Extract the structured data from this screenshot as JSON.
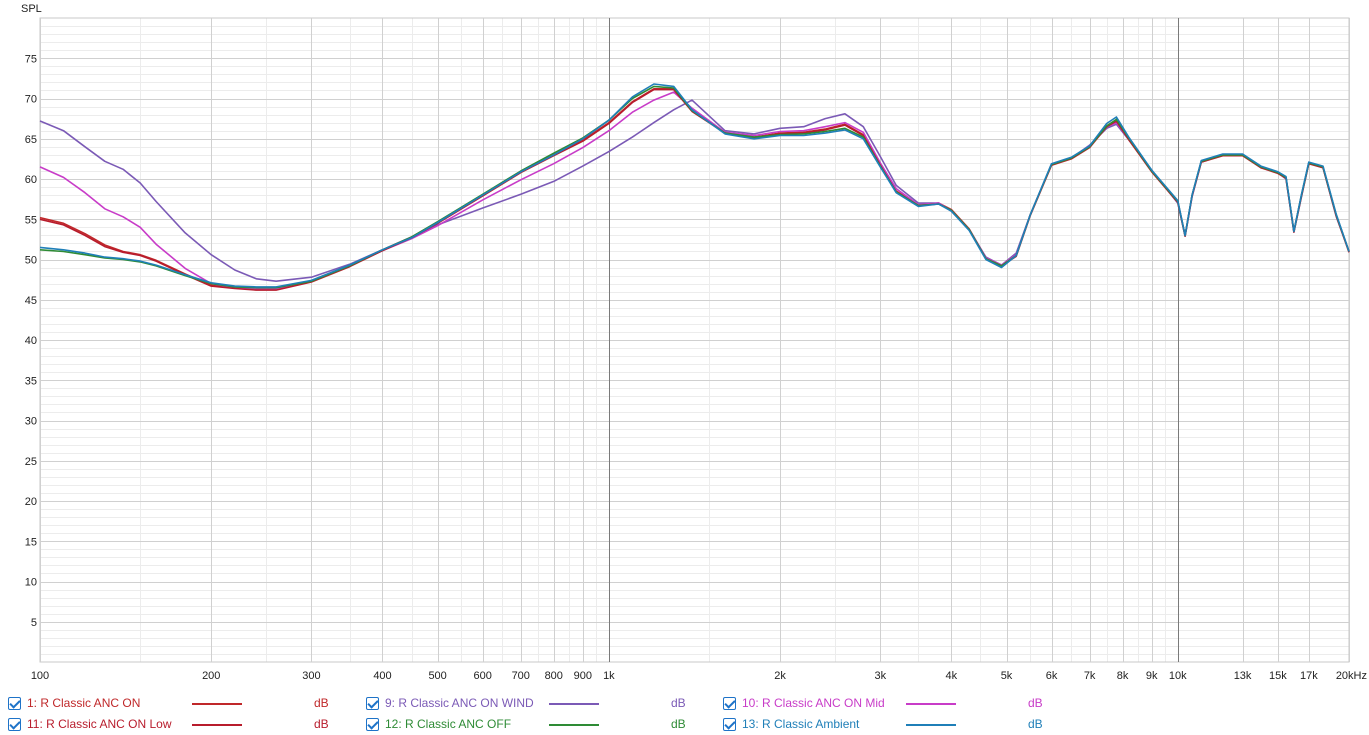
{
  "chart_data": {
    "type": "line",
    "title": "",
    "ylabel": "SPL",
    "xlabel": "",
    "x_scale": "log",
    "xlim": [
      100,
      20000
    ],
    "ylim": [
      0,
      80
    ],
    "x_ticks": [
      {
        "v": 100,
        "label": "100"
      },
      {
        "v": 200,
        "label": "200"
      },
      {
        "v": 300,
        "label": "300"
      },
      {
        "v": 400,
        "label": "400"
      },
      {
        "v": 500,
        "label": "500"
      },
      {
        "v": 600,
        "label": "600"
      },
      {
        "v": 700,
        "label": "700"
      },
      {
        "v": 800,
        "label": "800"
      },
      {
        "v": 900,
        "label": "900"
      },
      {
        "v": 1000,
        "label": "1k"
      },
      {
        "v": 2000,
        "label": "2k"
      },
      {
        "v": 3000,
        "label": "3k"
      },
      {
        "v": 4000,
        "label": "4k"
      },
      {
        "v": 5000,
        "label": "5k"
      },
      {
        "v": 6000,
        "label": "6k"
      },
      {
        "v": 7000,
        "label": "7k"
      },
      {
        "v": 8000,
        "label": "8k"
      },
      {
        "v": 9000,
        "label": "9k"
      },
      {
        "v": 10000,
        "label": "10k"
      },
      {
        "v": 13000,
        "label": "13k"
      },
      {
        "v": 15000,
        "label": "15k"
      },
      {
        "v": 17000,
        "label": "17k"
      },
      {
        "v": 20000,
        "label": "20kHz"
      }
    ],
    "y_ticks": [
      5,
      10,
      15,
      20,
      25,
      30,
      35,
      40,
      45,
      50,
      55,
      60,
      65,
      70,
      75
    ],
    "grid": true,
    "legend_position": "bottom",
    "series": [
      {
        "name": "1: R Classic ANC ON",
        "unit": "dB",
        "color": "#c0282a",
        "x": [
          100,
          110,
          120,
          130,
          140,
          150,
          160,
          180,
          200,
          220,
          240,
          260,
          300,
          350,
          400,
          450,
          500,
          600,
          700,
          800,
          900,
          1000,
          1100,
          1200,
          1300,
          1400,
          1600,
          1800,
          2000,
          2200,
          2400,
          2600,
          2800,
          3000,
          3200,
          3500,
          3800,
          4000,
          4300,
          4600,
          4900,
          5200,
          5500,
          6000,
          6500,
          7000,
          7500,
          7800,
          8200,
          9000,
          10000,
          10300,
          10600,
          11000,
          12000,
          13000,
          14000,
          15000,
          15500,
          16000,
          16500,
          17000,
          18000,
          19000,
          20000
        ],
        "y": [
          55.2,
          54.5,
          53.2,
          51.8,
          51.0,
          50.6,
          49.9,
          48.2,
          46.8,
          46.5,
          46.3,
          46.3,
          47.3,
          49.2,
          51.2,
          52.8,
          54.6,
          58.0,
          60.9,
          63.0,
          64.8,
          67.0,
          69.6,
          71.2,
          71.2,
          68.5,
          65.8,
          65.2,
          65.7,
          65.8,
          66.2,
          66.8,
          65.5,
          61.8,
          58.5,
          56.8,
          57.0,
          56.2,
          53.8,
          50.2,
          49.3,
          50.5,
          55.5,
          61.8,
          62.6,
          64.0,
          66.6,
          67.3,
          65.0,
          61.0,
          57.2,
          53.0,
          58.0,
          62.2,
          63.0,
          63.0,
          61.5,
          60.8,
          60.2,
          53.5,
          58.0,
          62.0,
          61.5,
          55.5,
          51.0
        ]
      },
      {
        "name": "9: R Classic ANC ON WIND",
        "unit": "dB",
        "color": "#7b5ab6",
        "x": [
          100,
          110,
          120,
          130,
          140,
          150,
          160,
          180,
          200,
          220,
          240,
          260,
          300,
          350,
          400,
          450,
          500,
          600,
          700,
          800,
          900,
          1000,
          1100,
          1200,
          1300,
          1400,
          1600,
          1800,
          2000,
          2200,
          2400,
          2600,
          2800,
          3000,
          3200,
          3500,
          3800,
          4000,
          4300,
          4600,
          4900,
          5200,
          5500,
          6000,
          6500,
          7000,
          7500,
          7800,
          8200,
          9000,
          10000,
          10300,
          10600,
          11000,
          12000,
          13000,
          14000,
          15000,
          15500,
          16000,
          16500,
          17000,
          18000,
          19000,
          20000
        ],
        "y": [
          67.2,
          66.0,
          64.0,
          62.2,
          61.2,
          59.5,
          57.2,
          53.3,
          50.6,
          48.7,
          47.6,
          47.3,
          47.8,
          49.4,
          51.2,
          52.8,
          54.3,
          56.4,
          58.1,
          59.7,
          61.6,
          63.4,
          65.2,
          67.0,
          68.6,
          69.8,
          66.0,
          65.6,
          66.3,
          66.5,
          67.5,
          68.1,
          66.5,
          62.8,
          59.2,
          57.0,
          57.0,
          56.0,
          53.7,
          50.3,
          49.3,
          50.8,
          55.5,
          61.8,
          62.6,
          64.2,
          66.3,
          66.8,
          64.9,
          61.1,
          57.0,
          52.9,
          57.8,
          62.1,
          63.0,
          63.0,
          61.4,
          60.8,
          60.0,
          53.4,
          57.8,
          62.0,
          61.4,
          55.3,
          51.0
        ]
      },
      {
        "name": "10: R Classic ANC ON Mid",
        "unit": "dB",
        "color": "#c83cc8",
        "x": [
          100,
          110,
          120,
          130,
          140,
          150,
          160,
          180,
          200,
          220,
          240,
          260,
          300,
          350,
          400,
          450,
          500,
          600,
          700,
          800,
          900,
          1000,
          1100,
          1200,
          1300,
          1400,
          1600,
          1800,
          2000,
          2200,
          2400,
          2600,
          2800,
          3000,
          3200,
          3500,
          3800,
          4000,
          4300,
          4600,
          4900,
          5200,
          5500,
          6000,
          6500,
          7000,
          7500,
          7800,
          8200,
          9000,
          10000,
          10300,
          10600,
          11000,
          12000,
          13000,
          14000,
          15000,
          15500,
          16000,
          16500,
          17000,
          18000,
          19000,
          20000
        ],
        "y": [
          61.5,
          60.2,
          58.3,
          56.3,
          55.3,
          54.0,
          51.9,
          48.9,
          47.0,
          46.5,
          46.3,
          46.3,
          47.3,
          49.2,
          51.1,
          52.6,
          54.2,
          57.4,
          59.9,
          61.9,
          63.9,
          66.0,
          68.3,
          69.8,
          70.8,
          68.8,
          65.8,
          65.4,
          65.9,
          66.0,
          66.5,
          67.0,
          65.8,
          62.0,
          58.8,
          56.8,
          57.0,
          56.1,
          53.7,
          50.2,
          49.3,
          50.6,
          55.5,
          61.8,
          62.6,
          64.1,
          66.5,
          67.0,
          65.0,
          61.0,
          57.1,
          53.0,
          57.9,
          62.1,
          63.0,
          63.0,
          61.5,
          60.8,
          60.1,
          53.5,
          57.9,
          62.0,
          61.5,
          55.4,
          51.0
        ]
      },
      {
        "name": "11: R Classic ANC ON Low",
        "unit": "dB",
        "color": "#b81c2c",
        "x": [
          100,
          110,
          120,
          130,
          140,
          150,
          160,
          180,
          200,
          220,
          240,
          260,
          300,
          350,
          400,
          450,
          500,
          600,
          700,
          800,
          900,
          1000,
          1100,
          1200,
          1300,
          1400,
          1600,
          1800,
          2000,
          2200,
          2400,
          2600,
          2800,
          3000,
          3200,
          3500,
          3800,
          4000,
          4300,
          4600,
          4900,
          5200,
          5500,
          6000,
          6500,
          7000,
          7500,
          7800,
          8200,
          9000,
          10000,
          10300,
          10600,
          11000,
          12000,
          13000,
          14000,
          15000,
          15500,
          16000,
          16500,
          17000,
          18000,
          19000,
          20000
        ],
        "y": [
          55.0,
          54.3,
          53.0,
          51.6,
          50.9,
          50.5,
          49.8,
          48.1,
          46.7,
          46.4,
          46.2,
          46.2,
          47.2,
          49.1,
          51.1,
          52.7,
          54.5,
          57.9,
          60.8,
          62.9,
          64.7,
          66.9,
          69.5,
          71.1,
          71.1,
          68.4,
          65.7,
          65.1,
          65.6,
          65.7,
          66.1,
          66.7,
          65.4,
          61.7,
          58.4,
          56.7,
          56.9,
          56.1,
          53.7,
          50.1,
          49.2,
          50.4,
          55.4,
          61.7,
          62.5,
          63.9,
          66.5,
          67.2,
          64.9,
          60.9,
          57.1,
          52.9,
          57.9,
          62.1,
          62.9,
          62.9,
          61.4,
          60.7,
          60.1,
          53.4,
          57.9,
          61.9,
          61.4,
          55.4,
          50.9
        ]
      },
      {
        "name": "12: R Classic ANC OFF",
        "unit": "dB",
        "color": "#2e8b35",
        "x": [
          100,
          110,
          120,
          130,
          140,
          150,
          160,
          180,
          200,
          220,
          240,
          260,
          300,
          350,
          400,
          450,
          500,
          600,
          700,
          800,
          900,
          1000,
          1100,
          1200,
          1300,
          1400,
          1600,
          1800,
          2000,
          2200,
          2400,
          2600,
          2800,
          3000,
          3200,
          3500,
          3800,
          4000,
          4300,
          4600,
          4900,
          5200,
          5500,
          6000,
          6500,
          7000,
          7500,
          7800,
          8200,
          9000,
          10000,
          10300,
          10600,
          11000,
          12000,
          13000,
          14000,
          15000,
          15500,
          16000,
          16500,
          17000,
          18000,
          19000,
          20000
        ],
        "y": [
          51.2,
          51.0,
          50.6,
          50.2,
          50.0,
          49.7,
          49.2,
          48.0,
          47.0,
          46.6,
          46.5,
          46.5,
          47.3,
          49.2,
          51.2,
          52.8,
          54.7,
          58.1,
          61.0,
          63.2,
          65.1,
          67.3,
          70.0,
          71.5,
          71.3,
          68.5,
          65.7,
          65.2,
          65.5,
          65.6,
          65.9,
          66.3,
          65.2,
          61.6,
          58.4,
          56.7,
          56.9,
          56.1,
          53.7,
          50.1,
          49.2,
          50.5,
          55.5,
          61.8,
          62.6,
          64.0,
          66.6,
          67.4,
          65.1,
          61.0,
          57.2,
          53.0,
          58.0,
          62.2,
          63.0,
          63.0,
          61.5,
          60.8,
          60.2,
          53.5,
          58.0,
          62.0,
          61.5,
          55.5,
          51.0
        ]
      },
      {
        "name": "13: R Classic Ambient",
        "unit": "dB",
        "color": "#1f7fb8",
        "x": [
          100,
          110,
          120,
          130,
          140,
          150,
          160,
          180,
          200,
          220,
          240,
          260,
          300,
          350,
          400,
          450,
          500,
          600,
          700,
          800,
          900,
          1000,
          1100,
          1200,
          1300,
          1400,
          1600,
          1800,
          2000,
          2200,
          2400,
          2600,
          2800,
          3000,
          3200,
          3500,
          3800,
          4000,
          4300,
          4600,
          4900,
          5200,
          5500,
          6000,
          6500,
          7000,
          7500,
          7800,
          8200,
          9000,
          10000,
          10300,
          10600,
          11000,
          12000,
          13000,
          14000,
          15000,
          15500,
          16000,
          16500,
          17000,
          18000,
          19000,
          20000
        ],
        "y": [
          51.5,
          51.2,
          50.8,
          50.3,
          50.1,
          49.8,
          49.3,
          48.1,
          47.1,
          46.7,
          46.6,
          46.6,
          47.4,
          49.3,
          51.2,
          52.7,
          54.6,
          58.0,
          60.9,
          63.0,
          65.0,
          67.3,
          70.2,
          71.8,
          71.5,
          68.6,
          65.6,
          65.0,
          65.4,
          65.4,
          65.7,
          66.1,
          65.0,
          61.5,
          58.3,
          56.6,
          56.9,
          56.0,
          53.6,
          50.0,
          49.0,
          50.5,
          55.5,
          61.9,
          62.7,
          64.1,
          66.9,
          67.7,
          65.2,
          61.1,
          57.3,
          53.0,
          58.0,
          62.3,
          63.1,
          63.1,
          61.6,
          60.9,
          60.3,
          53.5,
          58.1,
          62.1,
          61.6,
          55.6,
          51.0
        ]
      }
    ]
  }
}
